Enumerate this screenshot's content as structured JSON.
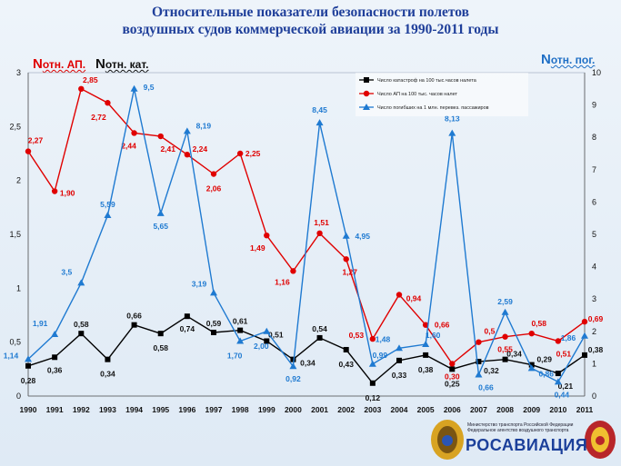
{
  "title_line1": "Относительные показатели безопасности полетов",
  "title_line2": "воздушных судов коммерческой авиации за 1990-2011 годы",
  "axis_heads": {
    "ap": {
      "n": "N",
      "sub": "отн. АП."
    },
    "kat": {
      "n": "N",
      "sub": "отн. кат."
    },
    "pog": {
      "n": "N",
      "sub": "отн. пог."
    }
  },
  "footer": {
    "org_line1": "Министерство транспорта Российской Федерации",
    "org_line2": "Федеральное агентство воздушного транспорта",
    "brand": "РОСАВИАЦИЯ"
  },
  "chart_data": {
    "type": "line",
    "x": [
      "1990",
      "1991",
      "1992",
      "1993",
      "1994",
      "1995",
      "1996",
      "1997",
      "1998",
      "1999",
      "2000",
      "2001",
      "2002",
      "2003",
      "2004",
      "2005",
      "2006",
      "2007",
      "2008",
      "2009",
      "2010",
      "2011"
    ],
    "y_left": {
      "ticks": [
        "0",
        "0,5",
        "1",
        "1,5",
        "2",
        "2,5",
        "3"
      ],
      "range": [
        0,
        3
      ]
    },
    "y_right": {
      "ticks": [
        "0",
        "1",
        "2",
        "3",
        "4",
        "5",
        "6",
        "7",
        "8",
        "9",
        "10"
      ],
      "range": [
        0,
        10
      ]
    },
    "series": [
      {
        "name": "Число катастроф на 100 тыс.часов налета",
        "axis": "left",
        "color": "#000000",
        "marker": "square",
        "values": [
          0.28,
          0.36,
          0.58,
          0.34,
          0.66,
          0.58,
          0.74,
          0.59,
          0.61,
          0.51,
          0.34,
          0.54,
          0.43,
          0.12,
          0.33,
          0.38,
          0.25,
          0.32,
          0.34,
          0.29,
          0.21,
          0.38
        ],
        "labels": [
          "0,28",
          "0,36",
          "0,58",
          "0,34",
          "0,66",
          "0,58",
          "0,74",
          "0,59",
          "0,61",
          "0,51",
          "0,34",
          "0,54",
          "0,43",
          "0,12",
          "0,33",
          "0,38",
          "0,25",
          "0,32",
          "0,34",
          "0,29",
          "0,21",
          "0,38"
        ]
      },
      {
        "name": "Число АП на 100 тыс. часов налет",
        "axis": "left",
        "color": "#e00000",
        "marker": "circle",
        "values": [
          2.27,
          1.9,
          2.85,
          2.72,
          2.44,
          2.41,
          2.24,
          2.06,
          2.25,
          1.49,
          1.16,
          1.51,
          1.27,
          0.53,
          0.94,
          0.66,
          0.3,
          0.5,
          0.55,
          0.58,
          0.51,
          0.69
        ],
        "labels": [
          "2,27",
          "1,90",
          "2,85",
          "2,72",
          "2,44",
          "2,41",
          "2,24",
          "2,06",
          "2,25",
          "1,49",
          "1,16",
          "1,51",
          "1,27",
          "0,53",
          "0,94",
          "0,66",
          "0,30",
          "0,5",
          "0,55",
          "0,58",
          "0,51",
          "0,69"
        ]
      },
      {
        "name": "Число погибших на 1 млн. перевез. пассажиров",
        "axis": "right",
        "color": "#1f7ad1",
        "marker": "triangle",
        "values": [
          1.14,
          1.91,
          3.5,
          5.59,
          9.5,
          5.65,
          8.19,
          3.19,
          1.7,
          2.0,
          0.92,
          8.45,
          4.95,
          0.99,
          1.48,
          1.6,
          8.13,
          0.66,
          2.59,
          0.86,
          0.44,
          1.86
        ],
        "labels": [
          "1,14",
          "1,91",
          "3,5",
          "5,59",
          "9,5",
          "5,65",
          "8,19",
          "3,19",
          "1,70",
          "2,00",
          "0,92",
          "8,45",
          "4,95",
          "0,99",
          "1,48",
          "1,60",
          "8,13",
          "0,66",
          "2,59",
          "0,86",
          "0,44",
          "1,86"
        ]
      }
    ],
    "legend_position": "top-right",
    "grid": false
  }
}
